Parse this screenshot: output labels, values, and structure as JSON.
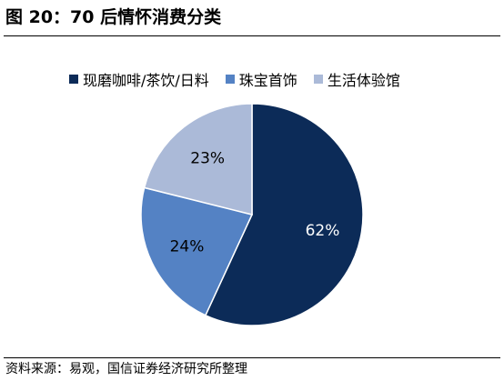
{
  "header": {
    "title": "图 20：70 后情怀消费分类"
  },
  "footer": {
    "source": "资料来源：易观，国信证券经济研究所整理"
  },
  "colors": {
    "dark_navy": "#0c2b58",
    "medium_blue": "#5482c4",
    "light_blue": "#abbad8"
  },
  "chart_data": {
    "type": "pie",
    "title": "",
    "legend_position": "top",
    "categories": [
      "现磨咖啡/茶饮/日料",
      "珠宝首饰",
      "生活体验馆"
    ],
    "values": [
      62,
      24,
      23
    ],
    "data_labels": [
      "62%",
      "24%",
      "23%"
    ],
    "series": [
      {
        "name": "现磨咖啡/茶饮/日料",
        "value": 62,
        "label": "62%",
        "color": "#0c2b58",
        "label_color": "#ffffff"
      },
      {
        "name": "珠宝首饰",
        "value": 24,
        "label": "24%",
        "color": "#5482c4",
        "label_color": "#000000"
      },
      {
        "name": "生活体验馆",
        "value": 23,
        "label": "23%",
        "color": "#abbad8",
        "label_color": "#000000"
      }
    ]
  }
}
